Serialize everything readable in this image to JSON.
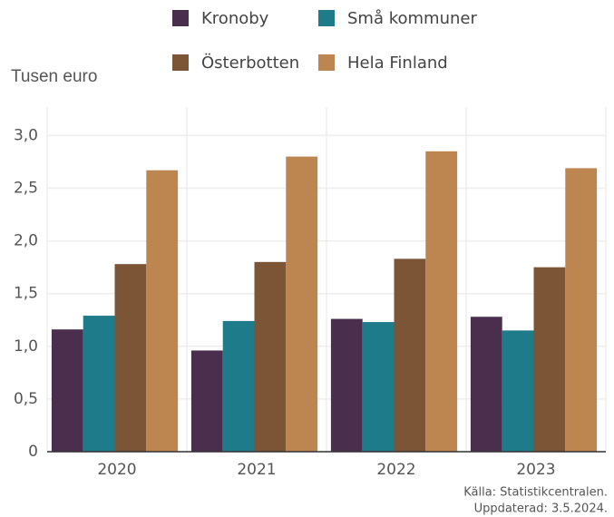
{
  "chart_data": {
    "type": "bar",
    "y_axis_label": "Tusen euro",
    "categories": [
      "2020",
      "2021",
      "2022",
      "2023"
    ],
    "series": [
      {
        "name": "Kronoby",
        "color": "#4b2e4e",
        "values": [
          1.16,
          0.96,
          1.26,
          1.28
        ]
      },
      {
        "name": "Små kommuner",
        "color": "#1e7b8a",
        "values": [
          1.29,
          1.24,
          1.23,
          1.15
        ]
      },
      {
        "name": "Österbotten",
        "color": "#7b5535",
        "values": [
          1.78,
          1.8,
          1.83,
          1.75
        ]
      },
      {
        "name": "Hela Finland",
        "color": "#bd8650",
        "values": [
          2.67,
          2.8,
          2.85,
          2.69
        ]
      }
    ],
    "ylim": [
      0,
      3.27
    ],
    "yticks": [
      0,
      {
        "value": 0.5,
        "label": "0,5"
      },
      {
        "value": 1,
        "label": "1,0"
      },
      {
        "value": 1.5,
        "label": "1,5"
      },
      {
        "value": 2,
        "label": "2,0"
      },
      {
        "value": 2.5,
        "label": "2,5"
      },
      {
        "value": 3,
        "label": "3,0"
      }
    ],
    "grid": true,
    "legend": "top",
    "source": [
      "Källa: Statistikcentralen.",
      "Uppdaterad: 3.5.2024."
    ]
  }
}
